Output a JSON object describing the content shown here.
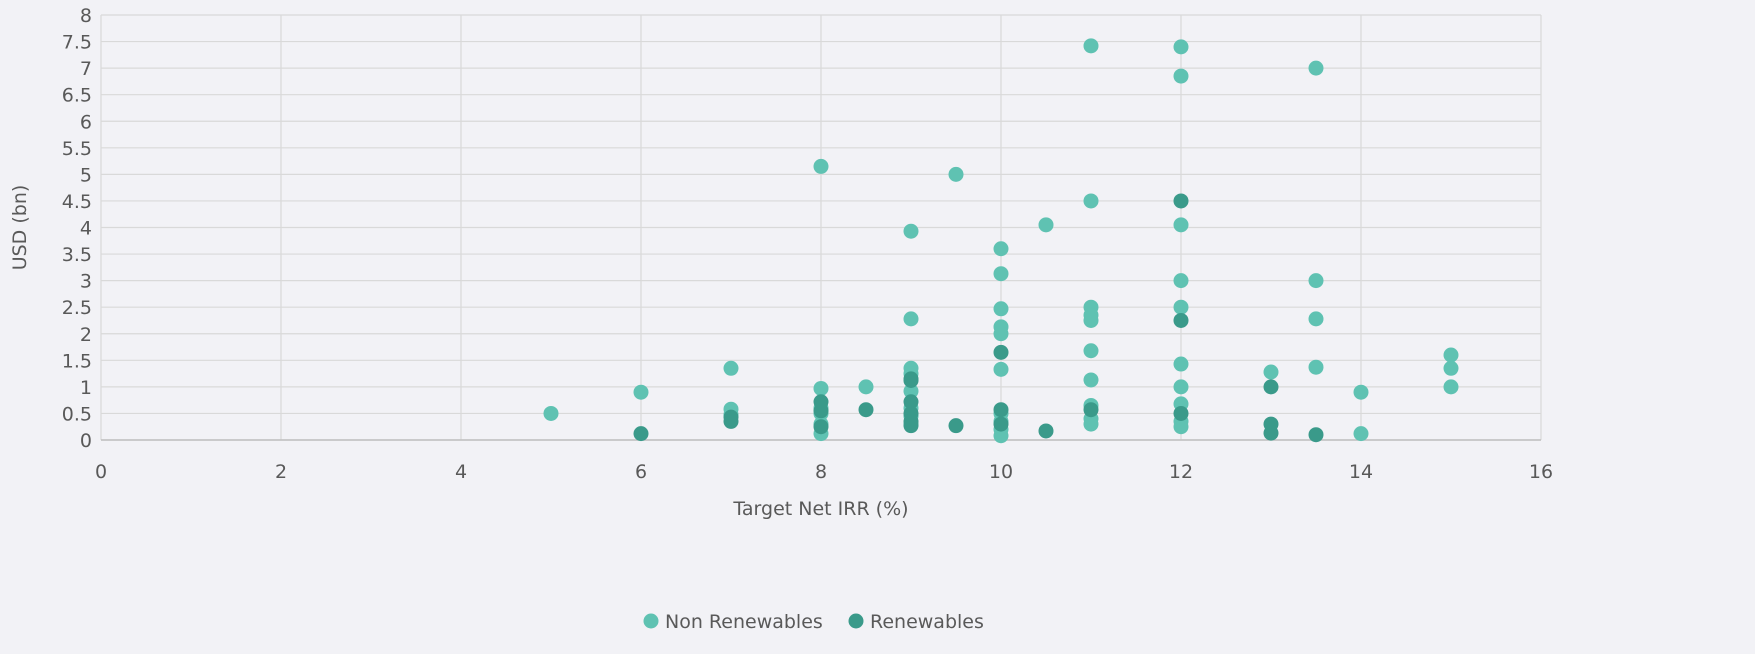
{
  "chart_data": {
    "type": "scatter",
    "title": "",
    "xlabel": "Target Net IRR (%)",
    "ylabel": "USD (bn)",
    "xlim": [
      0,
      16
    ],
    "ylim": [
      0,
      8
    ],
    "x_ticks": [
      "0",
      "2",
      "4",
      "6",
      "8",
      "10",
      "12",
      "14",
      "16"
    ],
    "y_ticks": [
      "0",
      "0.5",
      "1",
      "1.5",
      "2",
      "2.5",
      "3",
      "3.5",
      "4",
      "4.5",
      "5",
      "5.5",
      "6",
      "6.5",
      "7",
      "7.5",
      "8"
    ],
    "grid": true,
    "legend_position": "bottom",
    "series": [
      {
        "name": "Non Renewables",
        "color": "#5fc2b2",
        "points": [
          [
            5,
            0.5
          ],
          [
            6,
            0.9
          ],
          [
            7,
            1.35
          ],
          [
            7,
            0.58
          ],
          [
            7,
            0.48
          ],
          [
            8,
            5.15
          ],
          [
            8,
            0.97
          ],
          [
            8,
            0.6
          ],
          [
            8,
            0.5
          ],
          [
            8,
            0.3
          ],
          [
            8,
            0.12
          ],
          [
            8.5,
            1.0
          ],
          [
            9,
            3.93
          ],
          [
            9,
            2.28
          ],
          [
            9,
            1.35
          ],
          [
            9,
            1.25
          ],
          [
            9,
            0.92
          ],
          [
            9,
            0.6
          ],
          [
            9,
            0.45
          ],
          [
            9,
            0.3
          ],
          [
            9.5,
            5.0
          ],
          [
            10,
            3.6
          ],
          [
            10,
            3.13
          ],
          [
            10,
            2.47
          ],
          [
            10,
            2.13
          ],
          [
            10,
            2.0
          ],
          [
            10,
            1.33
          ],
          [
            10,
            0.5
          ],
          [
            10,
            0.35
          ],
          [
            10,
            0.2
          ],
          [
            10,
            0.08
          ],
          [
            10.5,
            4.05
          ],
          [
            11,
            7.42
          ],
          [
            11,
            4.5
          ],
          [
            11,
            2.5
          ],
          [
            11,
            2.35
          ],
          [
            11,
            2.25
          ],
          [
            11,
            1.68
          ],
          [
            11,
            1.13
          ],
          [
            11,
            0.65
          ],
          [
            11,
            0.4
          ],
          [
            11,
            0.3
          ],
          [
            12,
            7.4
          ],
          [
            12,
            6.85
          ],
          [
            12,
            4.05
          ],
          [
            12,
            3.0
          ],
          [
            12,
            2.5
          ],
          [
            12,
            1.43
          ],
          [
            12,
            1.0
          ],
          [
            12,
            0.68
          ],
          [
            12,
            0.35
          ],
          [
            12,
            0.25
          ],
          [
            13,
            1.28
          ],
          [
            13.5,
            7.0
          ],
          [
            13.5,
            3.0
          ],
          [
            13.5,
            2.28
          ],
          [
            13.5,
            1.37
          ],
          [
            14,
            0.9
          ],
          [
            14,
            0.12
          ],
          [
            15,
            1.6
          ],
          [
            15,
            1.35
          ],
          [
            15,
            1.0
          ]
        ]
      },
      {
        "name": "Renewables",
        "color": "#3a9a8a",
        "points": [
          [
            6,
            0.12
          ],
          [
            7,
            0.43
          ],
          [
            7,
            0.35
          ],
          [
            8,
            0.72
          ],
          [
            8,
            0.55
          ],
          [
            8,
            0.25
          ],
          [
            8.5,
            0.57
          ],
          [
            9,
            1.15
          ],
          [
            9,
            1.12
          ],
          [
            9,
            0.72
          ],
          [
            9,
            0.5
          ],
          [
            9,
            0.35
          ],
          [
            9,
            0.27
          ],
          [
            9.5,
            0.27
          ],
          [
            10,
            1.65
          ],
          [
            10,
            0.57
          ],
          [
            10,
            0.3
          ],
          [
            10.5,
            0.17
          ],
          [
            11,
            0.57
          ],
          [
            12,
            4.5
          ],
          [
            12,
            2.25
          ],
          [
            12,
            0.5
          ],
          [
            13,
            1.0
          ],
          [
            13,
            0.3
          ],
          [
            13,
            0.13
          ],
          [
            13.5,
            0.1
          ]
        ]
      }
    ]
  }
}
